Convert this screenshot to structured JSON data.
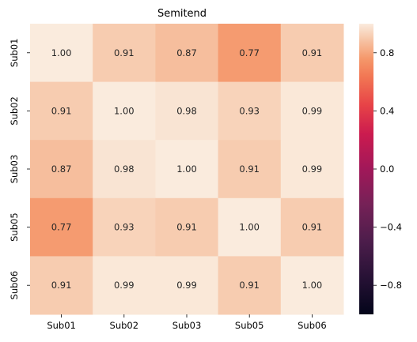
{
  "chart_data": {
    "type": "heatmap",
    "title": "Semitend",
    "x_categories": [
      "Sub01",
      "Sub02",
      "Sub03",
      "Sub05",
      "Sub06"
    ],
    "y_categories": [
      "Sub01",
      "Sub02",
      "Sub03",
      "Sub05",
      "Sub06"
    ],
    "values": [
      [
        1.0,
        0.91,
        0.87,
        0.77,
        0.91
      ],
      [
        0.91,
        1.0,
        0.98,
        0.93,
        0.99
      ],
      [
        0.87,
        0.98,
        1.0,
        0.91,
        0.99
      ],
      [
        0.77,
        0.93,
        0.91,
        1.0,
        0.91
      ],
      [
        0.91,
        0.99,
        0.99,
        0.91,
        1.0
      ]
    ],
    "value_format": "0.00",
    "colorbar": {
      "range": [
        -1,
        1
      ],
      "ticks": [
        0.8,
        0.4,
        0.0,
        -0.4,
        -0.8
      ],
      "tick_labels": [
        "0.8",
        "0.4",
        "0.0",
        "−0.4",
        "−0.8"
      ],
      "colormap": "rocket"
    },
    "grid": false,
    "legend": "colorbar-right"
  }
}
